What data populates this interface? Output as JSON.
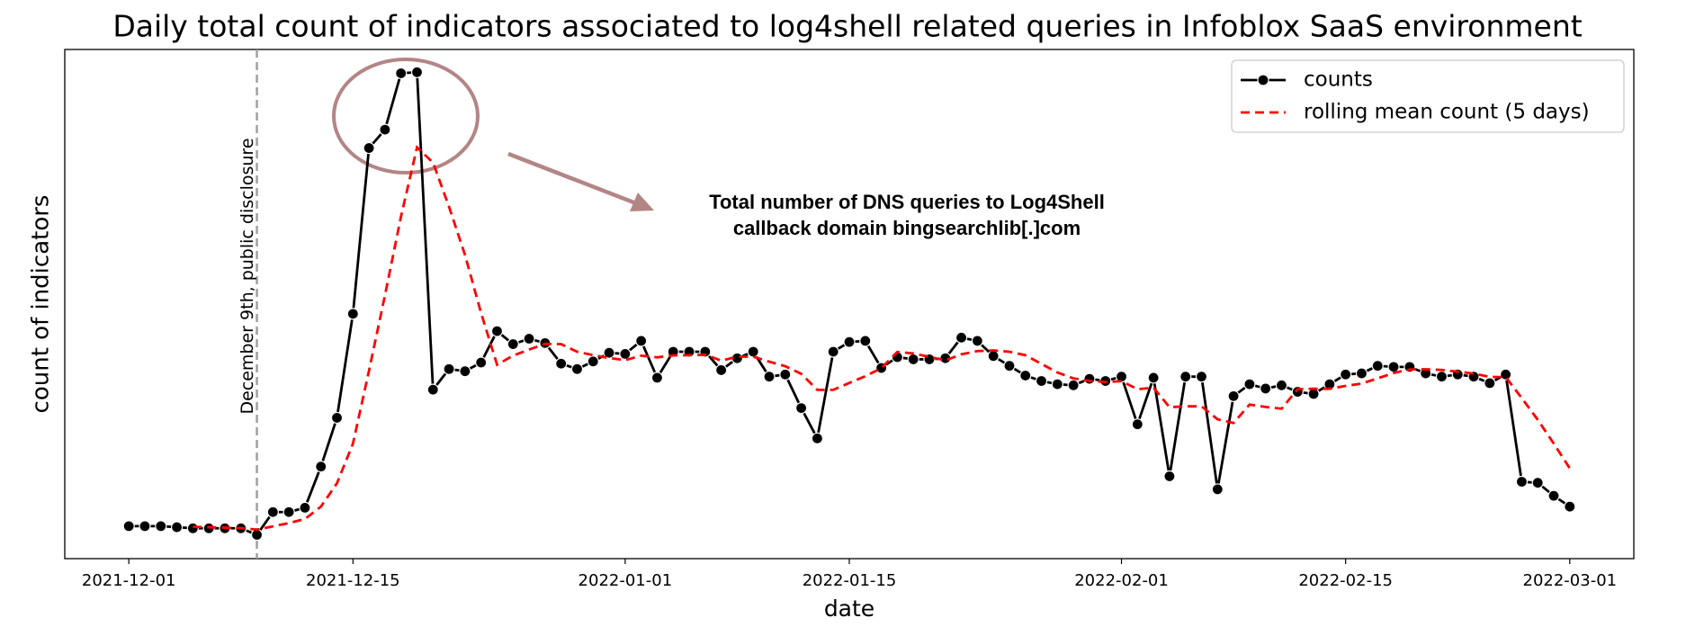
{
  "chart_data": {
    "type": "line",
    "title": "Daily total count of indicators associated to log4shell related queries in Infoblox SaaS environment",
    "xlabel": "date",
    "ylabel": "count of indicators",
    "x": [
      "2021-12-01",
      "2021-12-02",
      "2021-12-03",
      "2021-12-04",
      "2021-12-05",
      "2021-12-06",
      "2021-12-07",
      "2021-12-08",
      "2021-12-09",
      "2021-12-10",
      "2021-12-11",
      "2021-12-12",
      "2021-12-13",
      "2021-12-14",
      "2021-12-15",
      "2021-12-16",
      "2021-12-17",
      "2021-12-18",
      "2021-12-19",
      "2021-12-20",
      "2021-12-21",
      "2021-12-22",
      "2021-12-23",
      "2021-12-24",
      "2021-12-25",
      "2021-12-26",
      "2021-12-27",
      "2021-12-28",
      "2021-12-29",
      "2021-12-30",
      "2021-12-31",
      "2022-01-01",
      "2022-01-02",
      "2022-01-03",
      "2022-01-04",
      "2022-01-05",
      "2022-01-06",
      "2022-01-07",
      "2022-01-08",
      "2022-01-09",
      "2022-01-10",
      "2022-01-11",
      "2022-01-12",
      "2022-01-13",
      "2022-01-14",
      "2022-01-15",
      "2022-01-16",
      "2022-01-17",
      "2022-01-18",
      "2022-01-19",
      "2022-01-20",
      "2022-01-21",
      "2022-01-22",
      "2022-01-23",
      "2022-01-24",
      "2022-01-25",
      "2022-01-26",
      "2022-01-27",
      "2022-01-28",
      "2022-01-29",
      "2022-01-30",
      "2022-01-31",
      "2022-02-01",
      "2022-02-02",
      "2022-02-03",
      "2022-02-04",
      "2022-02-05",
      "2022-02-06",
      "2022-02-07",
      "2022-02-08",
      "2022-02-09",
      "2022-02-10",
      "2022-02-11",
      "2022-02-12",
      "2022-02-13",
      "2022-02-14",
      "2022-02-15",
      "2022-02-16",
      "2022-02-17",
      "2022-02-18",
      "2022-02-19",
      "2022-02-20",
      "2022-02-21",
      "2022-02-22",
      "2022-02-23",
      "2022-02-24",
      "2022-02-25",
      "2022-02-26",
      "2022-02-27",
      "2022-02-28",
      "2022-03-01"
    ],
    "series": [
      {
        "name": "counts",
        "color": "#000000",
        "linestyle": "solid",
        "marker": true,
        "values": [
          30,
          30,
          30,
          29,
          28,
          28,
          28,
          28,
          22,
          43,
          43,
          47,
          85,
          130,
          226,
          379,
          396,
          448,
          449,
          156,
          175,
          173,
          181,
          210,
          198,
          203,
          199,
          180,
          175,
          182,
          190,
          189,
          201,
          167,
          191,
          191,
          191,
          174,
          185,
          191,
          168,
          170,
          139,
          111,
          191,
          200,
          201,
          176,
          186,
          184,
          184,
          185,
          204,
          201,
          187,
          178,
          169,
          164,
          161,
          160,
          166,
          164,
          168,
          124,
          167,
          76,
          168,
          168,
          64,
          150,
          161,
          157,
          160,
          154,
          152,
          161,
          170,
          171,
          178,
          177,
          177,
          171,
          168,
          170,
          168,
          162,
          170,
          71,
          70,
          58,
          48
        ]
      },
      {
        "name": "rolling mean count (5 days)",
        "color": "#ff0000",
        "linestyle": "dashed",
        "marker": false,
        "values": [
          null,
          null,
          null,
          null,
          29.4,
          29,
          28.6,
          28.2,
          26.8,
          29.8,
          32.8,
          36.6,
          48,
          69.6,
          106.2,
          173.4,
          243.2,
          315.8,
          379.6,
          365.6,
          324.8,
          280.2,
          226.8,
          179,
          187.4,
          193,
          198.2,
          198,
          191,
          187.8,
          185.2,
          183.2,
          187.4,
          185.8,
          187.6,
          187.8,
          188.2,
          182.8,
          186.4,
          186.4,
          181.8,
          177.6,
          170.6,
          155.8,
          155.8,
          162.2,
          168.4,
          175.8,
          190.8,
          189.4,
          186.2,
          183,
          188.6,
          191.6,
          192.2,
          191,
          187.8,
          179.8,
          171.8,
          166.4,
          164,
          163,
          163.8,
          156.4,
          157.8,
          139.8,
          140.6,
          140.6,
          128.6,
          125.2,
          142.2,
          140,
          138.4,
          156.4,
          156.8,
          156.8,
          159.4,
          161.6,
          166.4,
          171.4,
          174.6,
          174.8,
          174.2,
          172.6,
          170.8,
          167.8,
          167.6,
          148.2,
          128.2,
          106.2,
          83.4
        ]
      }
    ],
    "xlim": [
      "2021-11-27",
      "2022-03-05"
    ],
    "ylim": [
      0,
      470
    ],
    "xticks": [
      "2021-12-01",
      "2021-12-15",
      "2022-01-01",
      "2022-01-15",
      "2022-02-01",
      "2022-02-15",
      "2022-03-01"
    ],
    "legend": "upper right",
    "annotations": [
      {
        "x": "2021-12-09",
        "text": "December 9th, public disclosure"
      }
    ],
    "callout": [
      "Total number of DNS queries to Log4Shell",
      "callback domain bingsearchlib[.]com"
    ]
  }
}
